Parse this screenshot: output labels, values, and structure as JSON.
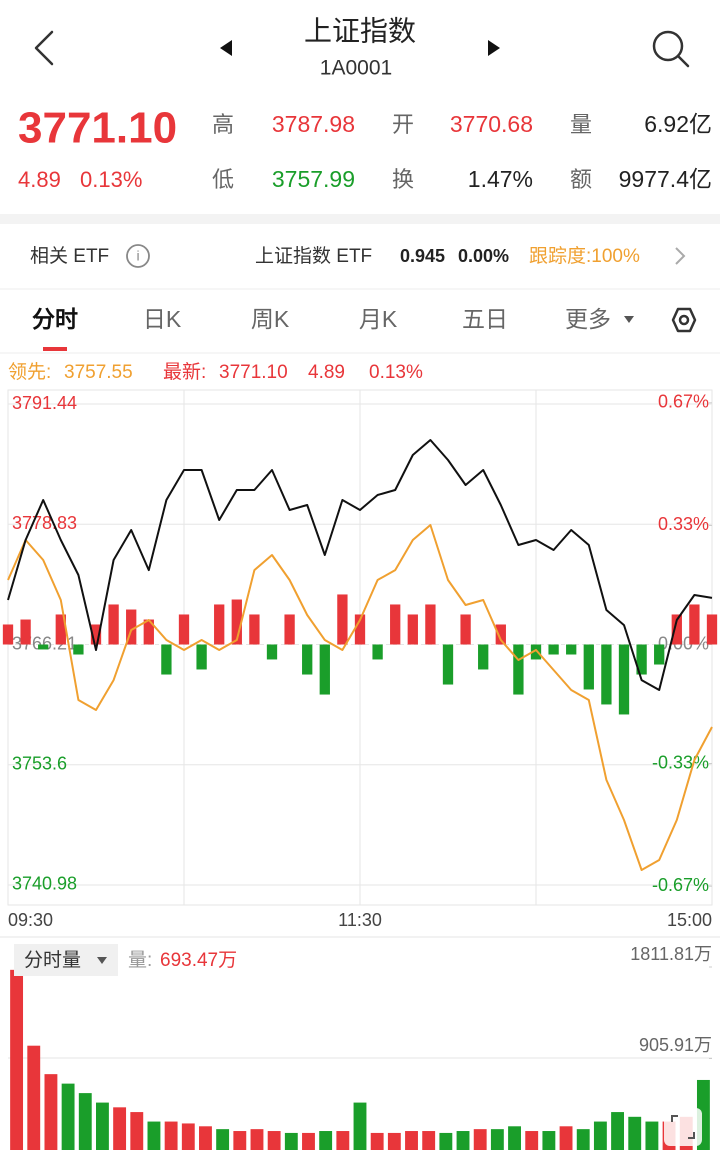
{
  "header": {
    "title": "上证指数",
    "code": "1A0001"
  },
  "quote": {
    "price": "3771.10",
    "change": "4.89",
    "change_pct": "0.13%",
    "stats": [
      [
        "高",
        "3787.98"
      ],
      [
        "开",
        "3770.68"
      ],
      [
        "量",
        "6.92亿"
      ],
      [
        "低",
        "3757.99"
      ],
      [
        "换",
        "1.47%"
      ],
      [
        "额",
        "9977.4亿"
      ]
    ]
  },
  "etf": {
    "label": "相关 ETF",
    "name": "上证指数 ETF",
    "price": "0.945",
    "change": "0.00%",
    "tracking": "跟踪度:100%"
  },
  "tabs": [
    "分时",
    "日K",
    "周K",
    "月K",
    "五日",
    "更多"
  ],
  "chart_data": [
    {
      "type": "line",
      "legend": {
        "lead_label": "领先:",
        "lead_value": "3757.55",
        "latest_label": "最新:",
        "latest_value": "3771.10",
        "latest_change": "4.89",
        "latest_pct": "0.13%"
      },
      "categories": [
        "09:30",
        null,
        null,
        null,
        null,
        null,
        null,
        null,
        null,
        null,
        null,
        null,
        null,
        null,
        null,
        null,
        null,
        null,
        null,
        null,
        "11:30",
        null,
        null,
        null,
        null,
        null,
        null,
        null,
        null,
        null,
        null,
        null,
        null,
        null,
        null,
        null,
        null,
        null,
        null,
        null,
        "15:00"
      ],
      "series": [
        {
          "color": "#111111",
          "values": [
            3770.88,
            3777.17,
            3781.37,
            3777.17,
            3773.5,
            3765.63,
            3775.07,
            3778.22,
            3774.02,
            3781.37,
            3784.52,
            3784.52,
            3779.27,
            3782.42,
            3782.42,
            3784.52,
            3780.32,
            3780.84,
            3775.6,
            3781.37,
            3780.32,
            3781.89,
            3782.42,
            3786.09,
            3787.66,
            3785.57,
            3782.94,
            3784.52,
            3780.84,
            3776.65,
            3777.17,
            3776.12,
            3778.22,
            3776.65,
            3769.83,
            3768.25,
            3762.48,
            3761.44,
            3768.78,
            3771.4,
            3771.1
          ]
        },
        {
          "color": "#f0a030",
          "values": [
            3772.98,
            3777.17,
            3775.07,
            3770.88,
            3760.39,
            3759.34,
            3762.48,
            3767.73,
            3768.78,
            3766.68,
            3765.63,
            3766.68,
            3765.63,
            3766.68,
            3774.02,
            3775.6,
            3772.98,
            3769.3,
            3766.68,
            3765.63,
            3768.78,
            3772.98,
            3774.02,
            3777.17,
            3778.75,
            3772.98,
            3770.35,
            3770.88,
            3766.68,
            3764.58,
            3765.63,
            3763.53,
            3761.44,
            3760.39,
            3752.0,
            3747.8,
            3742.55,
            3743.6,
            3747.8,
            3754.09,
            3757.55
          ]
        }
      ],
      "flow": {
        "colors": [
          "#e8363a",
          "#1a9e2a"
        ],
        "values": [
          2.1,
          2.62,
          -0.52,
          3.15,
          -1.05,
          2.1,
          4.2,
          3.67,
          2.62,
          -3.15,
          3.15,
          -2.62,
          4.2,
          4.72,
          3.15,
          -1.57,
          3.15,
          -3.15,
          -5.25,
          5.25,
          3.15,
          -1.57,
          4.2,
          3.15,
          4.2,
          -4.2,
          3.15,
          -2.62,
          2.1,
          -5.25,
          -1.57,
          -1.05,
          -1.05,
          -4.72,
          -6.29,
          -7.34,
          -3.15,
          -2.1,
          3.15,
          4.2,
          3.15
        ]
      },
      "ylim": [
        3739.72,
        3792.7
      ],
      "yticks": [
        3791.44,
        3778.83,
        3766.21,
        3753.6,
        3740.98
      ],
      "y2lim": [
        -0.7,
        0.7
      ],
      "y2ticks": [
        {
          "value": 0.67,
          "label": "0.67%"
        },
        {
          "value": 0.33,
          "label": "0.33%"
        },
        {
          "value": 0,
          "label": "0.00%"
        },
        {
          "value": -0.33,
          "label": "-0.33%"
        },
        {
          "value": -0.67,
          "label": "-0.67%"
        }
      ],
      "grid": true
    },
    {
      "type": "bar",
      "selector": "分时量",
      "label": "量:",
      "current": "693.47万",
      "colors": [
        "#e8363a",
        "#1a9e2a"
      ],
      "values": [
        1783.7,
        1032.7,
        751.0,
        657.2,
        563.3,
        469.4,
        422.5,
        375.5,
        281.6,
        281.6,
        262.9,
        234.7,
        206.5,
        187.8,
        206.5,
        187.8,
        169.0,
        169.0,
        187.8,
        187.8,
        469.4,
        169.0,
        169.0,
        187.8,
        187.8,
        169.0,
        187.8,
        206.5,
        206.5,
        234.7,
        187.8,
        187.8,
        234.7,
        206.5,
        281.6,
        375.5,
        328.6,
        281.6,
        281.6,
        328.6,
        693.47
      ],
      "ylim": [
        0,
        1811.81
      ],
      "yticks": [
        {
          "value": 905.91,
          "label": "905.91万"
        },
        {
          "value": 1811.81,
          "label": "1811.81万"
        }
      ]
    }
  ]
}
